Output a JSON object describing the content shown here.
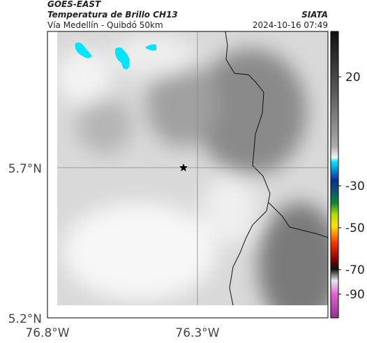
{
  "header": {
    "satellite": "GOES-EAST",
    "product": "Temperatura de Brillo CH13",
    "route": "Vía Medellín - Quibdó 50km",
    "source": "SIATA",
    "timestamp": "2024-10-16 07:49"
  },
  "map": {
    "y_labels": [
      "5.7°N",
      "5.2°N"
    ],
    "x_labels": [
      "76.8°W",
      "76.3°W"
    ]
  },
  "colorbar": {
    "labels": [
      "20",
      "-30",
      "-50",
      "-70",
      "-90"
    ]
  }
}
